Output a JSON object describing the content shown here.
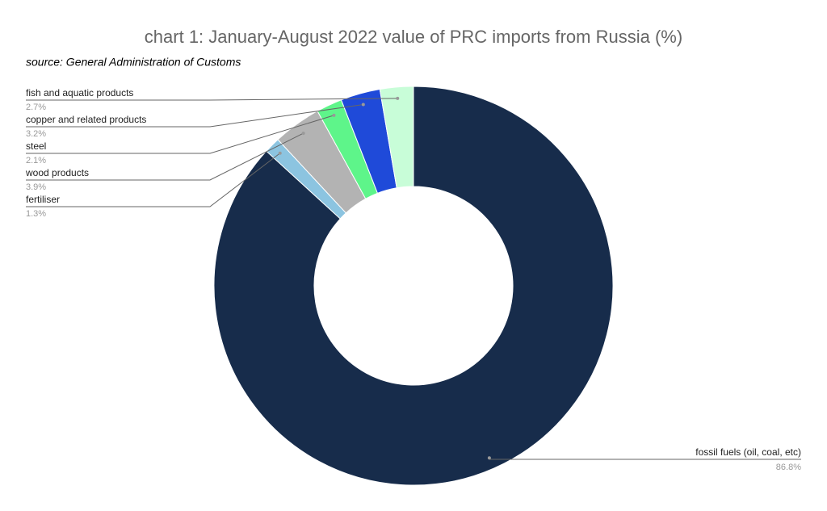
{
  "chart_data": {
    "type": "donut",
    "title": "chart 1: January-August 2022 value of PRC imports from Russia (%)",
    "subtitle": "source: General Administration of Customs",
    "categories": [
      "fossil fuels (oil, coal, etc)",
      "fertiliser",
      "wood products",
      "steel",
      "copper and related products",
      "fish and aquatic products"
    ],
    "values": [
      86.8,
      1.3,
      3.9,
      2.1,
      3.2,
      2.7
    ],
    "value_labels": [
      "86.8%",
      "1.3%",
      "3.9%",
      "2.1%",
      "3.2%",
      "2.7%"
    ],
    "colors": [
      "#172c4b",
      "#8cc4e0",
      "#b3b3b3",
      "#5ef58a",
      "#1f4ad9",
      "#c8fdd8"
    ]
  }
}
